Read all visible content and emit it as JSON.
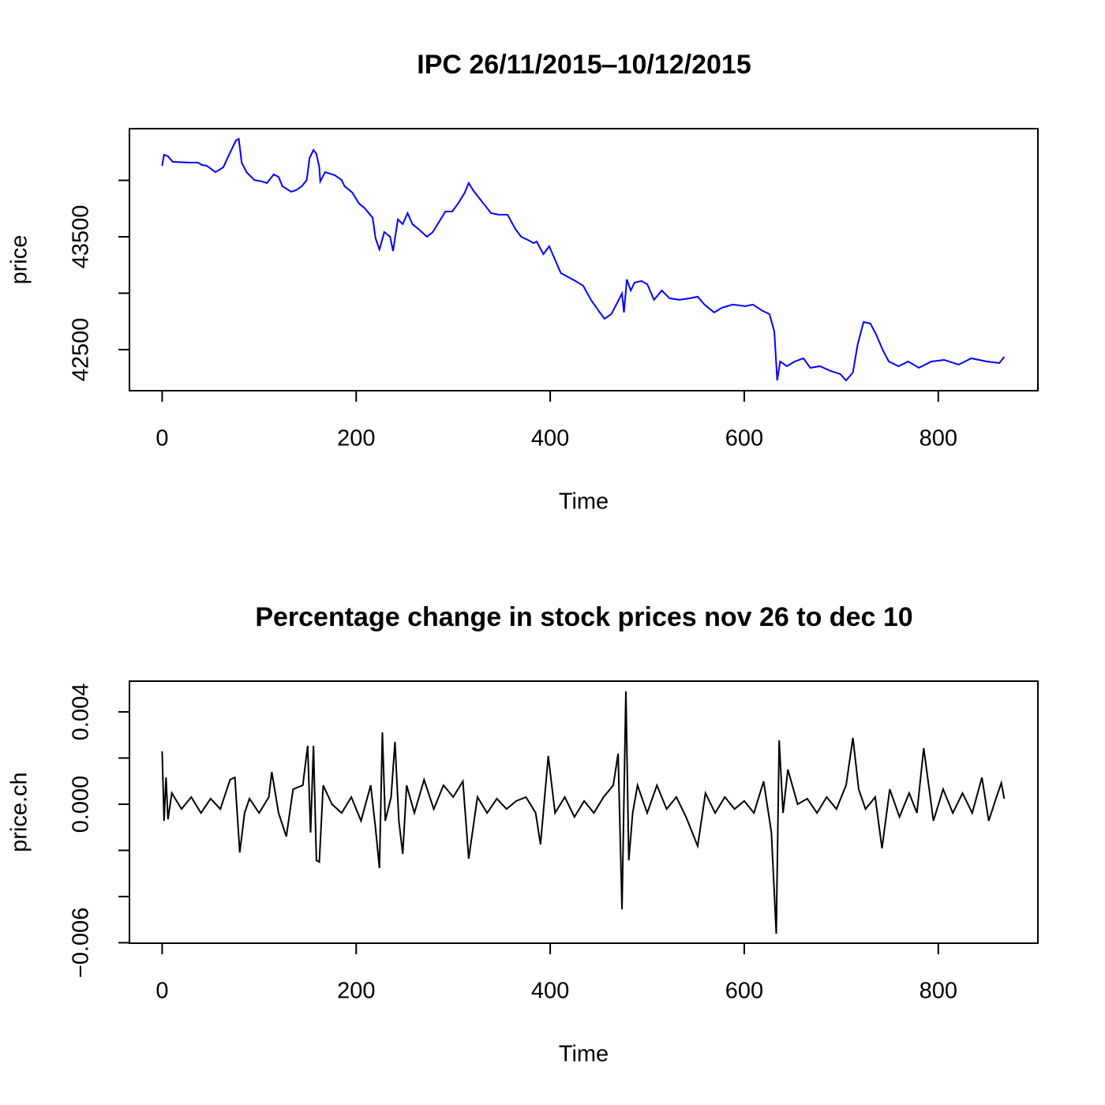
{
  "chart_data": [
    {
      "type": "line",
      "title": "IPC 26/11/2015‒10/12/2015",
      "xlabel": "Time",
      "ylabel": "price",
      "color": "#0000ff",
      "xlim": [
        -33.7,
        902.7
      ],
      "ylim": [
        42136,
        44458
      ],
      "xticks": [
        0,
        200,
        400,
        600,
        800
      ],
      "yticks": [
        42500,
        {
          "value": 43000,
          "label": null
        },
        43500,
        {
          "value": 44000,
          "label": null
        }
      ],
      "x": [
        0,
        2,
        6,
        11,
        28,
        37,
        41,
        46,
        55,
        63,
        69,
        76,
        79,
        82,
        87,
        95,
        103,
        108,
        115,
        120,
        124,
        133,
        138,
        144,
        149,
        152,
        156,
        159,
        162,
        163,
        168,
        178,
        185,
        188,
        196,
        203,
        209,
        217,
        220,
        224,
        229,
        235,
        238,
        243,
        248,
        253,
        258,
        264,
        273,
        279,
        286,
        292,
        299,
        305,
        312,
        316,
        321,
        330,
        339,
        347,
        356,
        364,
        370,
        377,
        383,
        386,
        393,
        399,
        406,
        411,
        417,
        426,
        434,
        442,
        450,
        456,
        463,
        469,
        474,
        476,
        479,
        483,
        487,
        494,
        500,
        507,
        515,
        523,
        533,
        544,
        552,
        559,
        569,
        577,
        588,
        601,
        609,
        619,
        626,
        631,
        634,
        637,
        644,
        652,
        661,
        668,
        678,
        689,
        699,
        705,
        712,
        717,
        723,
        730,
        736,
        743,
        749,
        759,
        769,
        780,
        793,
        806,
        821,
        834,
        850,
        863,
        868
      ],
      "values": [
        44129,
        44227,
        44213,
        44164,
        44157,
        44157,
        44136,
        44129,
        44073,
        44115,
        44227,
        44353,
        44367,
        44157,
        44073,
        44003,
        43990,
        43976,
        44052,
        44031,
        43948,
        43899,
        43913,
        43948,
        44003,
        44199,
        44269,
        44234,
        44115,
        43990,
        44073,
        44045,
        44003,
        43948,
        43892,
        43794,
        43752,
        43668,
        43486,
        43388,
        43542,
        43500,
        43374,
        43654,
        43612,
        43710,
        43612,
        43570,
        43500,
        43542,
        43640,
        43724,
        43724,
        43794,
        43892,
        43976,
        43906,
        43808,
        43710,
        43696,
        43696,
        43570,
        43500,
        43472,
        43444,
        43458,
        43346,
        43416,
        43276,
        43178,
        43150,
        43108,
        43066,
        42941,
        42843,
        42773,
        42815,
        42913,
        42997,
        42829,
        43122,
        43024,
        43094,
        43108,
        43080,
        42941,
        43024,
        42955,
        42941,
        42955,
        42969,
        42899,
        42829,
        42871,
        42899,
        42885,
        42899,
        42843,
        42815,
        42661,
        42227,
        42395,
        42353,
        42395,
        42423,
        42339,
        42353,
        42311,
        42283,
        42227,
        42297,
        42549,
        42745,
        42731,
        42633,
        42493,
        42395,
        42353,
        42395,
        42339,
        42395,
        42409,
        42367,
        42423,
        42395,
        42381,
        42437
      ]
    },
    {
      "type": "line",
      "title": "Percentage change in stock prices nov 26 to dec 10",
      "xlabel": "Time",
      "ylabel": "price.ch",
      "color": "#000000",
      "xlim": [
        -33.7,
        902.7
      ],
      "ylim": [
        -0.00602,
        0.00533
      ],
      "xticks": [
        0,
        200,
        400,
        600,
        800
      ],
      "yticks": [
        {
          "value": -0.006,
          "label": "−0.006"
        },
        {
          "value": -0.004,
          "label": null
        },
        {
          "value": -0.002,
          "label": null
        },
        {
          "value": 0,
          "label": "0.000"
        },
        {
          "value": 0.002,
          "label": null
        },
        {
          "value": 0.004,
          "label": "0.004"
        }
      ],
      "x": [
        0,
        2,
        4,
        6,
        10,
        20,
        30,
        40,
        50,
        60,
        70,
        75,
        80,
        85,
        90,
        100,
        110,
        113,
        120,
        128,
        135,
        145,
        150,
        153,
        156,
        159,
        162,
        166,
        175,
        185,
        195,
        205,
        215,
        220,
        224,
        227,
        230,
        236,
        240,
        244,
        248,
        252,
        260,
        270,
        280,
        290,
        300,
        310,
        316,
        325,
        335,
        345,
        355,
        365,
        375,
        385,
        390,
        398,
        405,
        415,
        425,
        435,
        445,
        455,
        465,
        470,
        474,
        478,
        481,
        485,
        490,
        500,
        510,
        520,
        530,
        540,
        552,
        560,
        570,
        580,
        590,
        600,
        610,
        620,
        628,
        633,
        636,
        640,
        645,
        655,
        665,
        675,
        685,
        695,
        705,
        712,
        718,
        725,
        735,
        742,
        750,
        760,
        770,
        778,
        785,
        795,
        805,
        815,
        825,
        835,
        845,
        852,
        860,
        865,
        868
      ],
      "values": [
        0.00229,
        -0.00072,
        0.00116,
        -0.00065,
        0.00048,
        -0.00021,
        0.00031,
        -0.00038,
        0.00024,
        -0.00021,
        0.00106,
        0.00116,
        -0.00209,
        -0.00038,
        0.00024,
        -0.00038,
        0.00031,
        0.0014,
        -0.00038,
        -0.0014,
        0.00065,
        0.00082,
        0.00253,
        -0.00123,
        0.00253,
        -0.00243,
        -0.0025,
        0.00082,
        0,
        -0.00038,
        0.00031,
        -0.00072,
        0.00082,
        -0.00106,
        -0.00277,
        0.00311,
        -0.00072,
        0.00031,
        0.0027,
        -0.00072,
        -0.00215,
        0.00082,
        -0.00038,
        0.00106,
        -0.00021,
        0.00082,
        0.00031,
        0.00099,
        -0.00236,
        0.00031,
        -0.00038,
        0.00024,
        -0.00021,
        0.00014,
        0.00031,
        -0.00038,
        -0.00174,
        0.00209,
        -0.00038,
        0.00031,
        -0.00055,
        0.00014,
        -0.00038,
        0.00031,
        0.00082,
        0.00219,
        -0.00455,
        0.00489,
        -0.00243,
        -0.00038,
        0.00082,
        -0.00038,
        0.00082,
        -0.00021,
        0.00031,
        -0.00055,
        -0.00181,
        0.00048,
        -0.00038,
        0.00031,
        -0.00021,
        0.00014,
        -0.00038,
        0.00099,
        -0.00123,
        -0.00561,
        0.00277,
        -0.00038,
        0.0015,
        0,
        0.00024,
        -0.00038,
        0.00031,
        -0.00021,
        0.00082,
        0.00287,
        0.00065,
        -0.00021,
        0.00031,
        -0.00191,
        0.00065,
        -0.00055,
        0.00048,
        -0.00038,
        0.00243,
        -0.00072,
        0.00065,
        -0.00038,
        0.00048,
        -0.00038,
        0.00116,
        -0.00072,
        0.00031,
        0.00092,
        0.00024
      ]
    }
  ]
}
